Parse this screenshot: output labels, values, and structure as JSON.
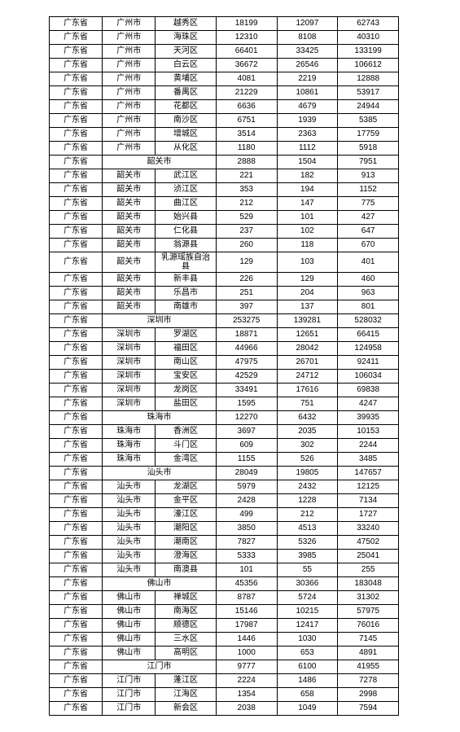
{
  "table": {
    "background_color": "#ffffff",
    "border_color": "#000000",
    "font_size": 10,
    "rows": [
      {
        "type": "row",
        "cells": [
          "广东省",
          "广州市",
          "越秀区",
          "18199",
          "12097",
          "62743"
        ]
      },
      {
        "type": "row",
        "cells": [
          "广东省",
          "广州市",
          "海珠区",
          "12310",
          "8108",
          "40310"
        ]
      },
      {
        "type": "row",
        "cells": [
          "广东省",
          "广州市",
          "天河区",
          "66401",
          "33425",
          "133199"
        ]
      },
      {
        "type": "row",
        "cells": [
          "广东省",
          "广州市",
          "白云区",
          "36672",
          "26546",
          "106612"
        ]
      },
      {
        "type": "row",
        "cells": [
          "广东省",
          "广州市",
          "黄埔区",
          "4081",
          "2219",
          "12888"
        ]
      },
      {
        "type": "row",
        "cells": [
          "广东省",
          "广州市",
          "番禺区",
          "21229",
          "10861",
          "53917"
        ]
      },
      {
        "type": "row",
        "cells": [
          "广东省",
          "广州市",
          "花都区",
          "6636",
          "4679",
          "24944"
        ]
      },
      {
        "type": "row",
        "cells": [
          "广东省",
          "广州市",
          "南沙区",
          "6751",
          "1939",
          "5385"
        ]
      },
      {
        "type": "row",
        "cells": [
          "广东省",
          "广州市",
          "增城区",
          "3514",
          "2363",
          "17759"
        ]
      },
      {
        "type": "row",
        "cells": [
          "广东省",
          "广州市",
          "从化区",
          "1180",
          "1112",
          "5918"
        ]
      },
      {
        "type": "summary",
        "cells": [
          "广东省",
          "韶关市",
          "2888",
          "1504",
          "7951"
        ]
      },
      {
        "type": "row",
        "cells": [
          "广东省",
          "韶关市",
          "武江区",
          "221",
          "182",
          "913"
        ]
      },
      {
        "type": "row",
        "cells": [
          "广东省",
          "韶关市",
          "浈江区",
          "353",
          "194",
          "1152"
        ]
      },
      {
        "type": "row",
        "cells": [
          "广东省",
          "韶关市",
          "曲江区",
          "212",
          "147",
          "775"
        ]
      },
      {
        "type": "row",
        "cells": [
          "广东省",
          "韶关市",
          "始兴县",
          "529",
          "101",
          "427"
        ]
      },
      {
        "type": "row",
        "cells": [
          "广东省",
          "韶关市",
          "仁化县",
          "237",
          "102",
          "647"
        ]
      },
      {
        "type": "row",
        "cells": [
          "广东省",
          "韶关市",
          "翁源县",
          "260",
          "118",
          "670"
        ]
      },
      {
        "type": "row",
        "cells": [
          "广东省",
          "韶关市",
          "乳源瑶族自治县",
          "129",
          "103",
          "401"
        ],
        "wrap": true
      },
      {
        "type": "row",
        "cells": [
          "广东省",
          "韶关市",
          "新丰县",
          "226",
          "129",
          "460"
        ]
      },
      {
        "type": "row",
        "cells": [
          "广东省",
          "韶关市",
          "乐昌市",
          "251",
          "204",
          "963"
        ]
      },
      {
        "type": "row",
        "cells": [
          "广东省",
          "韶关市",
          "南雄市",
          "397",
          "137",
          "801"
        ]
      },
      {
        "type": "summary",
        "cells": [
          "广东省",
          "深圳市",
          "253275",
          "139281",
          "528032"
        ]
      },
      {
        "type": "row",
        "cells": [
          "广东省",
          "深圳市",
          "罗湖区",
          "18871",
          "12651",
          "66415"
        ]
      },
      {
        "type": "row",
        "cells": [
          "广东省",
          "深圳市",
          "福田区",
          "44966",
          "28042",
          "124958"
        ]
      },
      {
        "type": "row",
        "cells": [
          "广东省",
          "深圳市",
          "南山区",
          "47975",
          "26701",
          "92411"
        ]
      },
      {
        "type": "row",
        "cells": [
          "广东省",
          "深圳市",
          "宝安区",
          "42529",
          "24712",
          "106034"
        ]
      },
      {
        "type": "row",
        "cells": [
          "广东省",
          "深圳市",
          "龙岗区",
          "33491",
          "17616",
          "69838"
        ]
      },
      {
        "type": "row",
        "cells": [
          "广东省",
          "深圳市",
          "盐田区",
          "1595",
          "751",
          "4247"
        ]
      },
      {
        "type": "summary",
        "cells": [
          "广东省",
          "珠海市",
          "12270",
          "6432",
          "39935"
        ]
      },
      {
        "type": "row",
        "cells": [
          "广东省",
          "珠海市",
          "香洲区",
          "3697",
          "2035",
          "10153"
        ]
      },
      {
        "type": "row",
        "cells": [
          "广东省",
          "珠海市",
          "斗门区",
          "609",
          "302",
          "2244"
        ]
      },
      {
        "type": "row",
        "cells": [
          "广东省",
          "珠海市",
          "金湾区",
          "1155",
          "526",
          "3485"
        ]
      },
      {
        "type": "summary",
        "cells": [
          "广东省",
          "汕头市",
          "28049",
          "19805",
          "147657"
        ]
      },
      {
        "type": "row",
        "cells": [
          "广东省",
          "汕头市",
          "龙湖区",
          "5979",
          "2432",
          "12125"
        ]
      },
      {
        "type": "row",
        "cells": [
          "广东省",
          "汕头市",
          "金平区",
          "2428",
          "1228",
          "7134"
        ]
      },
      {
        "type": "row",
        "cells": [
          "广东省",
          "汕头市",
          "濠江区",
          "499",
          "212",
          "1727"
        ]
      },
      {
        "type": "row",
        "cells": [
          "广东省",
          "汕头市",
          "潮阳区",
          "3850",
          "4513",
          "33240"
        ]
      },
      {
        "type": "row",
        "cells": [
          "广东省",
          "汕头市",
          "潮南区",
          "7827",
          "5326",
          "47502"
        ]
      },
      {
        "type": "row",
        "cells": [
          "广东省",
          "汕头市",
          "澄海区",
          "5333",
          "3985",
          "25041"
        ]
      },
      {
        "type": "row",
        "cells": [
          "广东省",
          "汕头市",
          "南澳县",
          "101",
          "55",
          "255"
        ]
      },
      {
        "type": "summary",
        "cells": [
          "广东省",
          "佛山市",
          "45356",
          "30366",
          "183048"
        ]
      },
      {
        "type": "row",
        "cells": [
          "广东省",
          "佛山市",
          "禅城区",
          "8787",
          "5724",
          "31302"
        ]
      },
      {
        "type": "row",
        "cells": [
          "广东省",
          "佛山市",
          "南海区",
          "15146",
          "10215",
          "57975"
        ]
      },
      {
        "type": "row",
        "cells": [
          "广东省",
          "佛山市",
          "顺德区",
          "17987",
          "12417",
          "76016"
        ]
      },
      {
        "type": "row",
        "cells": [
          "广东省",
          "佛山市",
          "三水区",
          "1446",
          "1030",
          "7145"
        ]
      },
      {
        "type": "row",
        "cells": [
          "广东省",
          "佛山市",
          "高明区",
          "1000",
          "653",
          "4891"
        ]
      },
      {
        "type": "summary",
        "cells": [
          "广东省",
          "江门市",
          "9777",
          "6100",
          "41955"
        ]
      },
      {
        "type": "row",
        "cells": [
          "广东省",
          "江门市",
          "蓬江区",
          "2224",
          "1486",
          "7278"
        ]
      },
      {
        "type": "row",
        "cells": [
          "广东省",
          "江门市",
          "江海区",
          "1354",
          "658",
          "2998"
        ]
      },
      {
        "type": "row",
        "cells": [
          "广东省",
          "江门市",
          "新会区",
          "2038",
          "1049",
          "7594"
        ]
      }
    ]
  }
}
